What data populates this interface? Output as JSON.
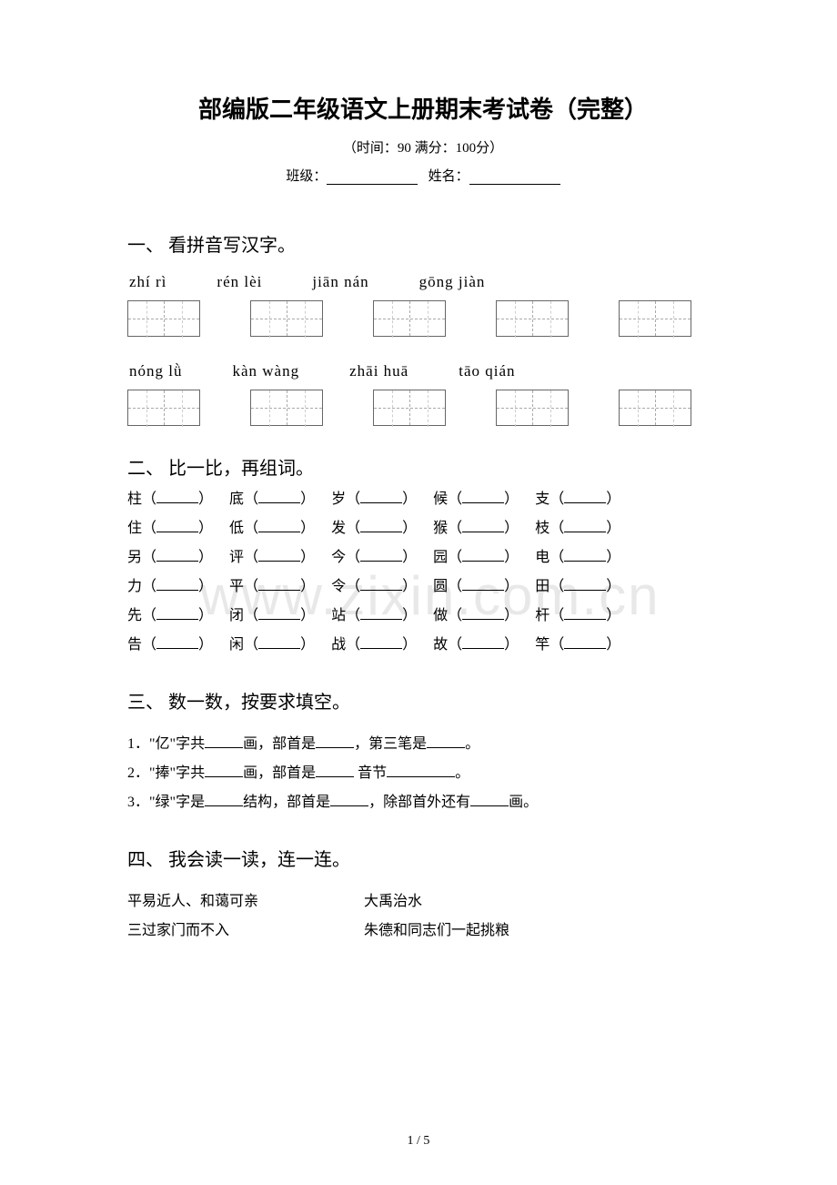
{
  "title": "部编版二年级语文上册期末考试卷（完整）",
  "subtitle": "（时间：90   满分：100分）",
  "class_label": "班级：",
  "name_label": "姓名：",
  "watermark": "www.zixin.com.cn",
  "section1": {
    "title": "一、 看拼音写汉字。",
    "row1": [
      "zhí   rì",
      "rén lèi",
      "jiān nán",
      "gōng jiàn"
    ],
    "row2": [
      "nóng lǜ",
      "kàn wàng",
      "zhāi huā",
      "tāo qián"
    ]
  },
  "section2": {
    "title": "二、 比一比，再组词。",
    "rows": [
      [
        "柱",
        "底",
        "岁",
        "候",
        "支"
      ],
      [
        "住",
        "低",
        "发",
        "猴",
        "枝"
      ],
      [
        "另",
        "评",
        "今",
        "园",
        "电"
      ],
      [
        "力",
        "平",
        "令",
        "圆",
        "田"
      ],
      [
        "先",
        "闭",
        "站",
        "做",
        "杆"
      ],
      [
        "告",
        "闲",
        "战",
        "故",
        "竿"
      ]
    ]
  },
  "section3": {
    "title": "三、 数一数，按要求填空。",
    "line1_a": "1．\"亿\"字共",
    "line1_b": "画，部首是",
    "line1_c": "，第三笔是",
    "line1_d": "。",
    "line2_a": "2．\"捧\"字共",
    "line2_b": "画，部首是",
    "line2_c": "     音节",
    "line2_d": "。",
    "line3_a": "3．\"绿\"字是",
    "line3_b": "结构，部首是",
    "line3_c": "，除部首外还有",
    "line3_d": "画。"
  },
  "section4": {
    "title": "四、 我会读一读，连一连。",
    "rows": [
      [
        "平易近人、和蔼可亲",
        "大禹治水"
      ],
      [
        "三过家门而不入",
        "朱德和同志们一起挑粮"
      ]
    ]
  },
  "page_num": "1 / 5"
}
